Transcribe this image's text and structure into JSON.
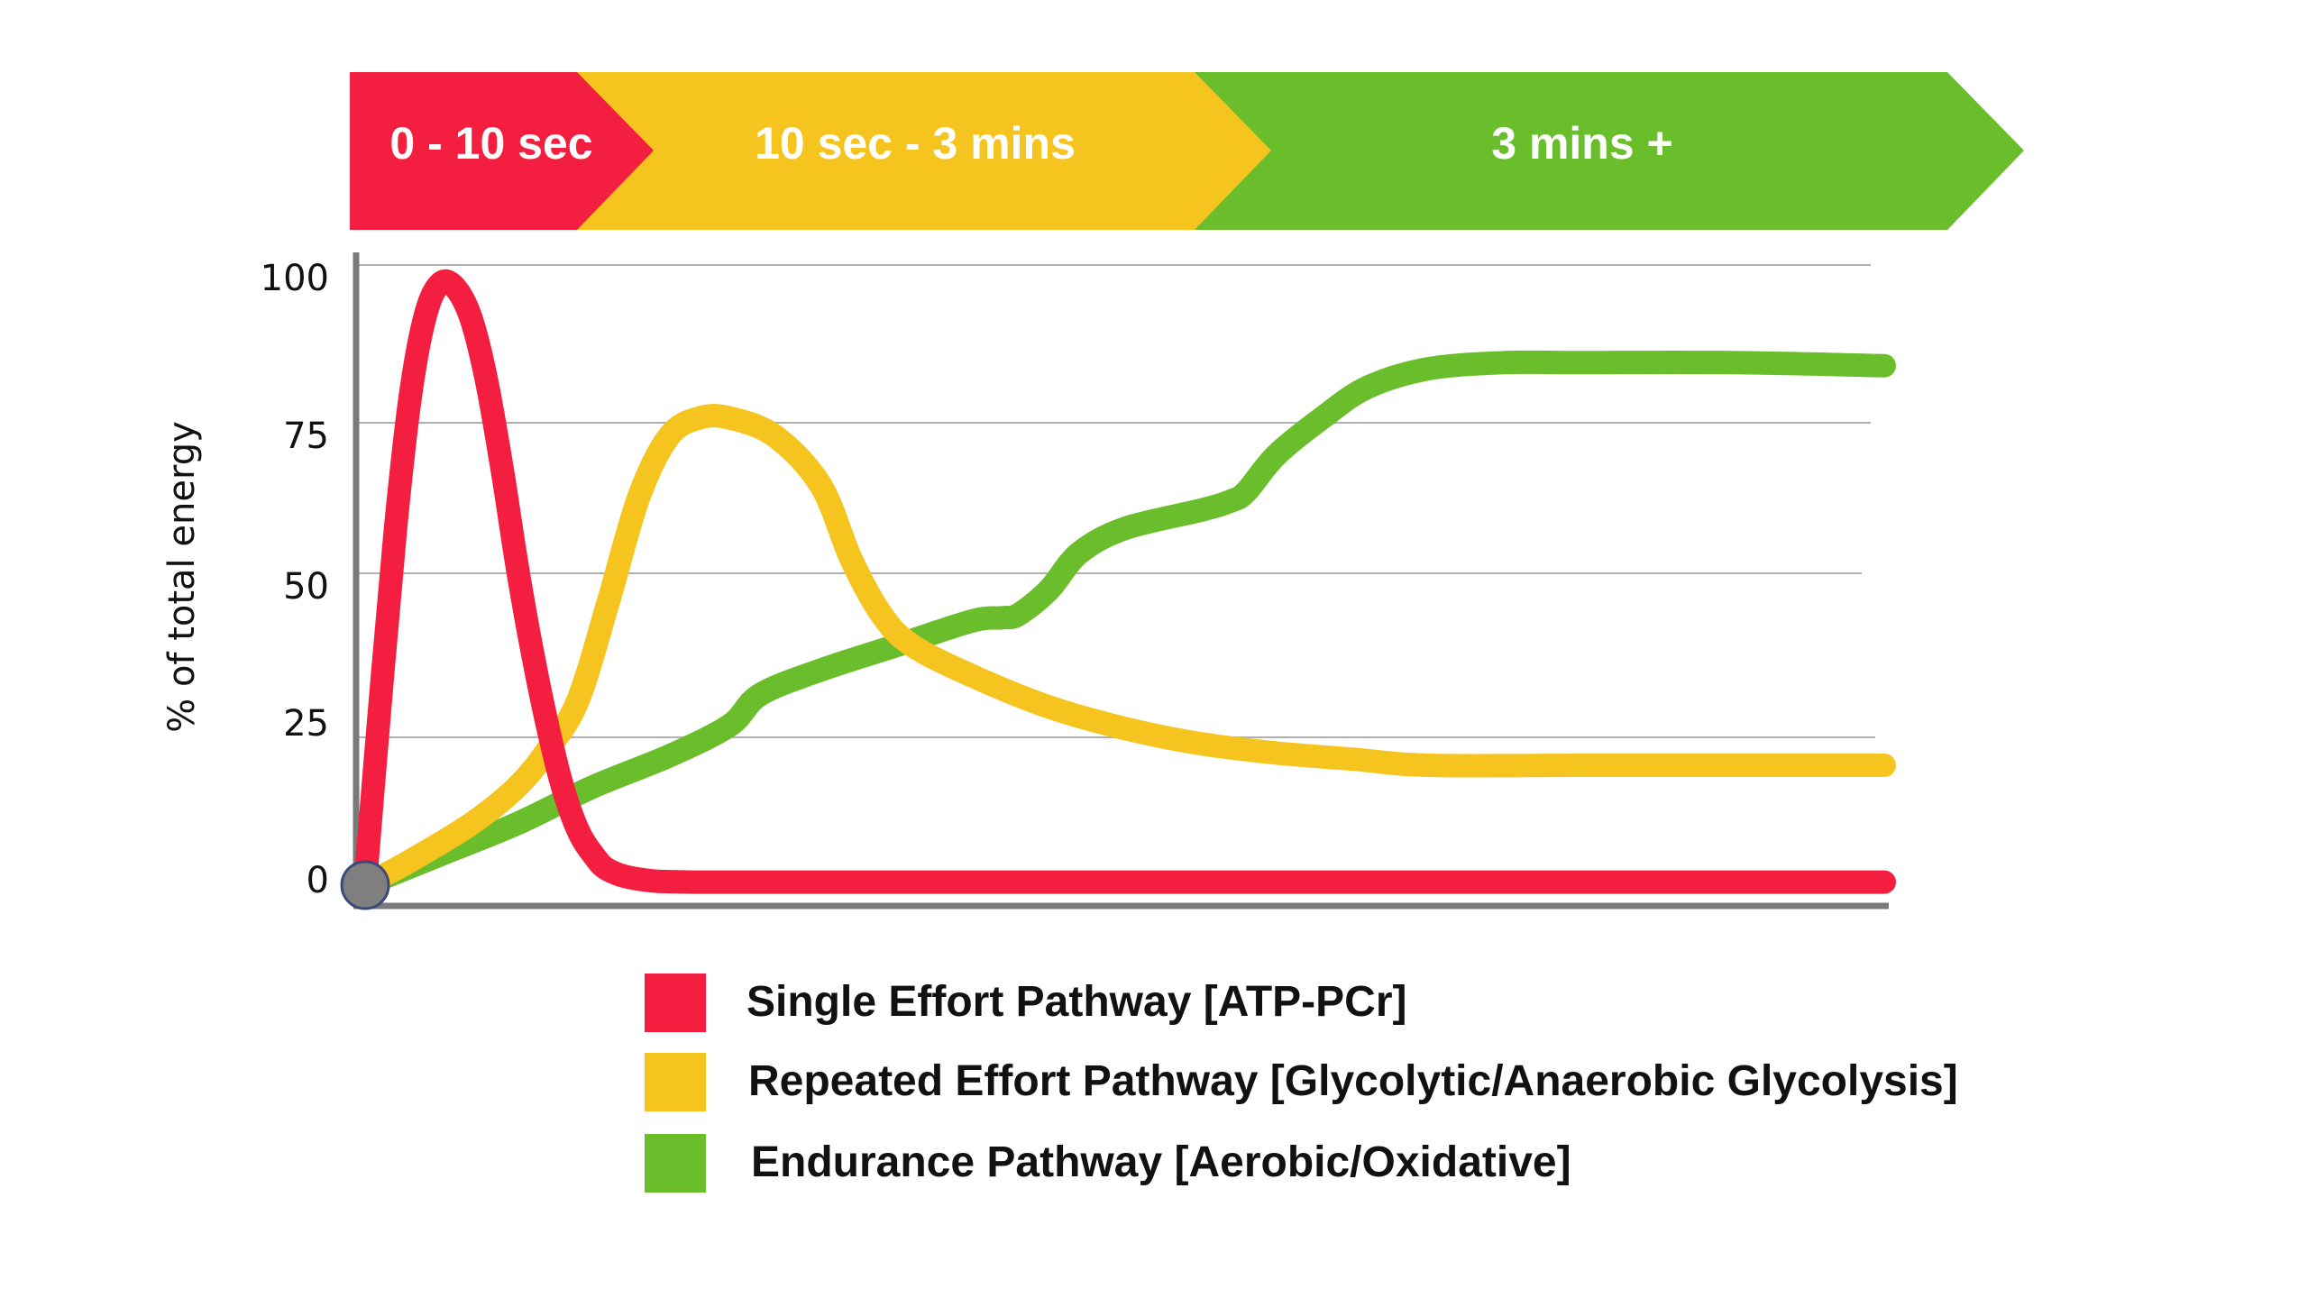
{
  "chart_data": {
    "type": "line",
    "ylabel": "% of total energy",
    "xlabel": "",
    "ylim": [
      0,
      100
    ],
    "yticks": [
      0,
      25,
      50,
      75,
      100
    ],
    "grid": true,
    "legend_position": "bottom",
    "phases": [
      {
        "label": "0 - 10 sec",
        "color": "#F41E40"
      },
      {
        "label": "10 sec - 3 mins",
        "color": "#F5C41F"
      },
      {
        "label": "3 mins +",
        "color": "#6BBE2B"
      }
    ],
    "series": [
      {
        "name": "Single Effort Pathway [ATP-PCr]",
        "color": "#F41E40",
        "points": [
          [
            0,
            0
          ],
          [
            1,
            30
          ],
          [
            2,
            58
          ],
          [
            3,
            80
          ],
          [
            4,
            93
          ],
          [
            5,
            98
          ],
          [
            6,
            97
          ],
          [
            7,
            92
          ],
          [
            8,
            82
          ],
          [
            9,
            68
          ],
          [
            10,
            52
          ],
          [
            11,
            38
          ],
          [
            12,
            26
          ],
          [
            13,
            16
          ],
          [
            14,
            9
          ],
          [
            15,
            5
          ],
          [
            16,
            2.5
          ],
          [
            18,
            1
          ],
          [
            22,
            0.5
          ],
          [
            40,
            0.5
          ],
          [
            70,
            0.5
          ],
          [
            100,
            0.5
          ]
        ]
      },
      {
        "name": "Repeated Effort Pathway [Glycolytic/Anaerobic Glycolysis]",
        "color": "#F5C41F",
        "points": [
          [
            0,
            0
          ],
          [
            3,
            4
          ],
          [
            7,
            10
          ],
          [
            10,
            16
          ],
          [
            12,
            22
          ],
          [
            14,
            30
          ],
          [
            16,
            46
          ],
          [
            18,
            63
          ],
          [
            20,
            73
          ],
          [
            22,
            76
          ],
          [
            24,
            76
          ],
          [
            27,
            73
          ],
          [
            30,
            65
          ],
          [
            32,
            53
          ],
          [
            34,
            44
          ],
          [
            36,
            39
          ],
          [
            40,
            34
          ],
          [
            45,
            29
          ],
          [
            50,
            25.5
          ],
          [
            55,
            23
          ],
          [
            60,
            21.5
          ],
          [
            65,
            20.5
          ],
          [
            70,
            19.5
          ],
          [
            80,
            19.5
          ],
          [
            90,
            19.5
          ],
          [
            100,
            19.5
          ]
        ]
      },
      {
        "name": "Endurance Pathway [Aerobic/Oxidative]",
        "color": "#6BBE2B",
        "points": [
          [
            0,
            0
          ],
          [
            5,
            5
          ],
          [
            10,
            10
          ],
          [
            15,
            16
          ],
          [
            20,
            21
          ],
          [
            24,
            26
          ],
          [
            26,
            31
          ],
          [
            30,
            35
          ],
          [
            35,
            39
          ],
          [
            40,
            43
          ],
          [
            42,
            43.5
          ],
          [
            43,
            44
          ],
          [
            45,
            48
          ],
          [
            47,
            54
          ],
          [
            50,
            58
          ],
          [
            55,
            61
          ],
          [
            57,
            62.5
          ],
          [
            58,
            64
          ],
          [
            60,
            70
          ],
          [
            63,
            76
          ],
          [
            66,
            81
          ],
          [
            70,
            84
          ],
          [
            75,
            85
          ],
          [
            80,
            85
          ],
          [
            90,
            85
          ],
          [
            100,
            84.5
          ]
        ]
      }
    ]
  }
}
